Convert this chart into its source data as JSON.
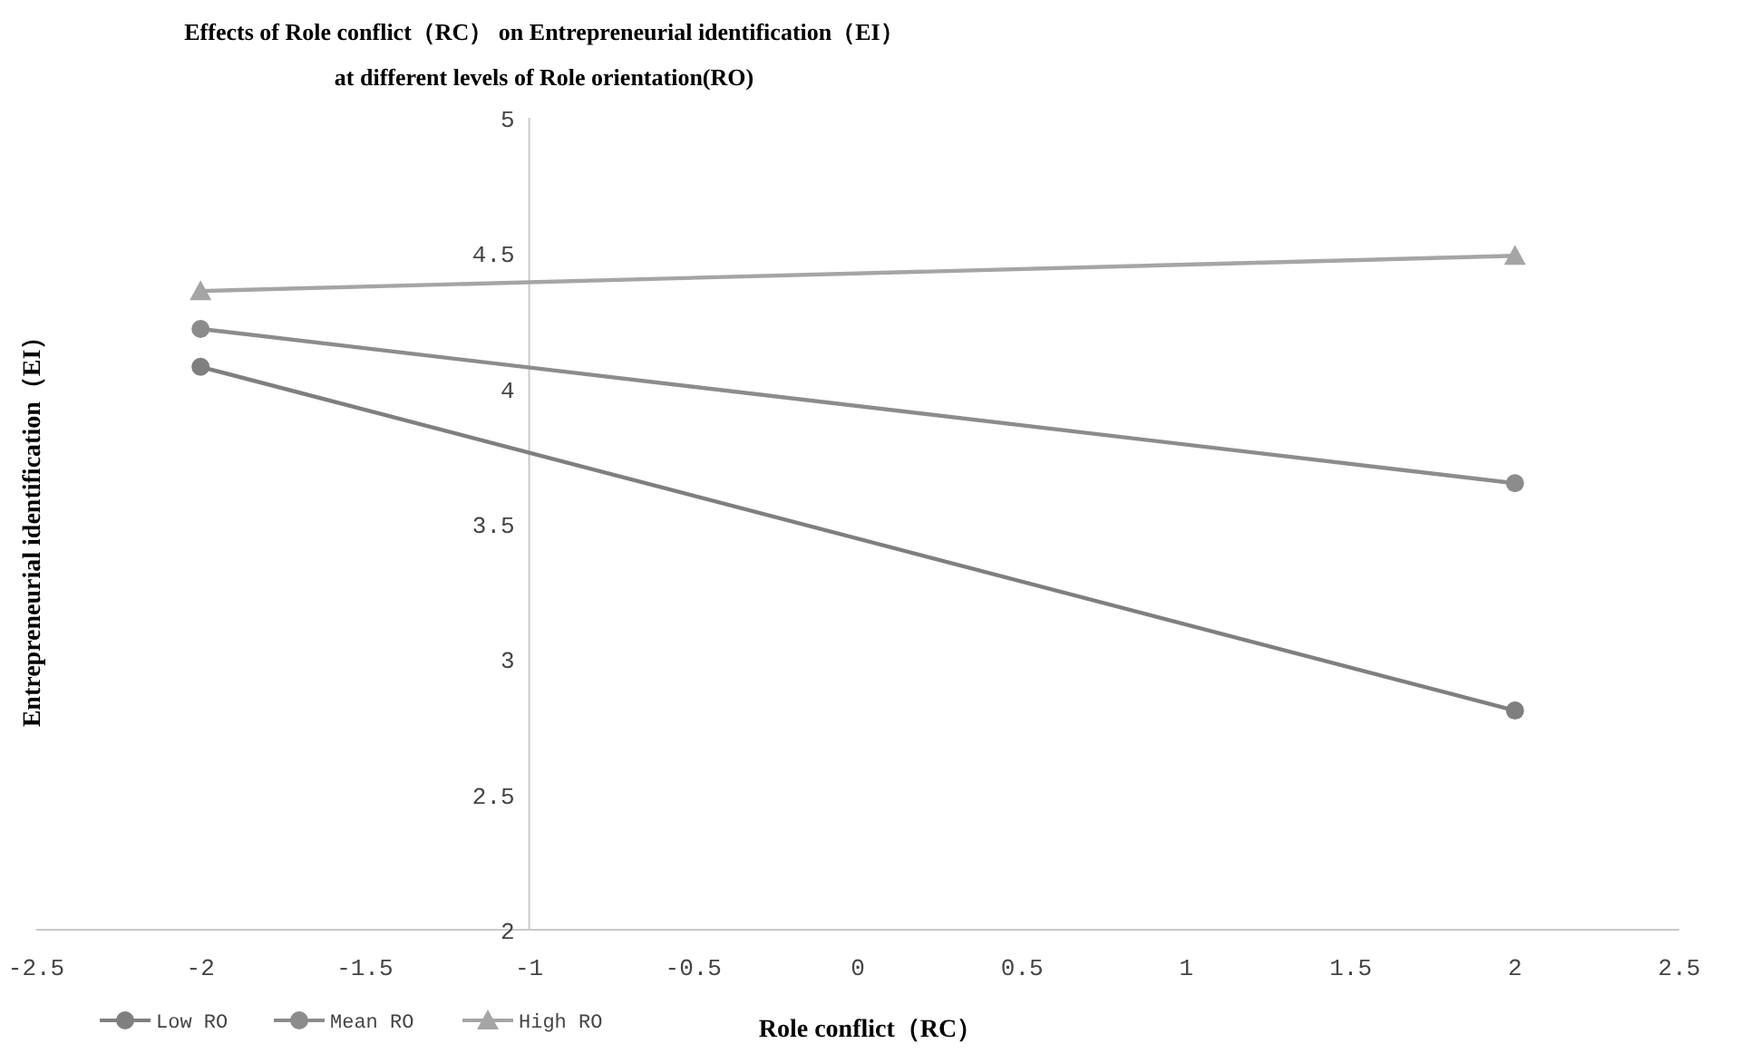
{
  "chart_data": {
    "type": "line",
    "title": "Effects of Role conflict（RC） on Entrepreneurial identification（EI）",
    "subtitle": "at different levels of Role orientation(RO)",
    "xlabel": "Role conflict（RC）",
    "ylabel": "Entrepreneurial identification（EI）",
    "x": [
      -2,
      2
    ],
    "series": [
      {
        "name": "Low RO",
        "color": "#7f7f7f",
        "values": [
          4.08,
          2.81
        ],
        "marker": "circle"
      },
      {
        "name": "Mean RO",
        "color": "#8c8c8c",
        "values": [
          4.22,
          3.65
        ],
        "marker": "circle"
      },
      {
        "name": "High RO",
        "color": "#a5a5a5",
        "values": [
          4.36,
          4.49
        ],
        "marker": "triangle"
      }
    ],
    "xlim": [
      -2.5,
      2.5
    ],
    "xticks": [
      -2.5,
      -2,
      -1.5,
      -1,
      -0.5,
      0,
      0.5,
      1,
      1.5,
      2,
      2.5
    ],
    "ylim": [
      2,
      5
    ],
    "yticks": [
      2,
      2.5,
      3,
      3.5,
      4,
      4.5,
      5
    ],
    "grid": false,
    "legend": "bottom left",
    "line_style": "solid"
  }
}
